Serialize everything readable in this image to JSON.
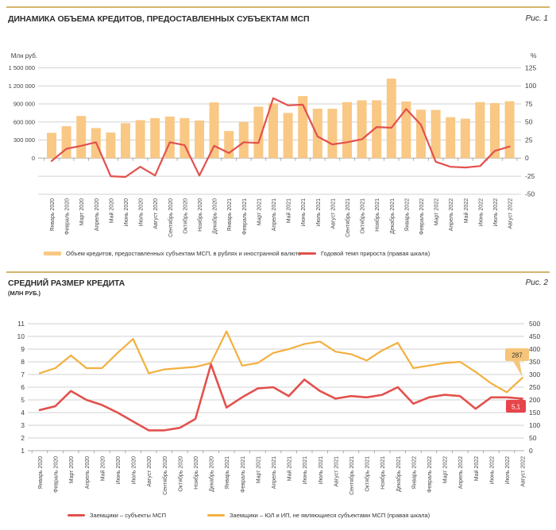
{
  "panels": [
    {
      "title": "ДИНАМИКА ОБЪЕМА КРЕДИТОВ, ПРЕДОСТАВЛЕННЫХ СУБЪЕКТАМ МСП",
      "fig_label": "Рис. 1"
    },
    {
      "title": "СРЕДНИЙ РАЗМЕР КРЕДИТА",
      "subtitle": "(МЛН РУБ.)",
      "fig_label": "Рис. 2"
    }
  ],
  "colors": {
    "bar": "#f9c884",
    "red_line": "#e2514d",
    "yellow_line": "#f2b03f",
    "grid": "#d2d2d2",
    "zero_axis": "#ababab",
    "rule": "#d5b46c",
    "callout_yellow_bg": "#f7c579",
    "callout_red_bg": "#e6454b"
  },
  "chart_data": [
    {
      "type": "bar",
      "title": "ДИНАМИКА ОБЪЕМА КРЕДИТОВ, ПРЕДОСТАВЛЕННЫХ СУБЪЕКТАМ МСП",
      "categories": [
        "Январь 2020",
        "Февраль 2020",
        "Март 2020",
        "Апрель 2020",
        "Май 2020",
        "Июнь 2020",
        "Июль 2020",
        "Август 2020",
        "Сентябрь 2020",
        "Октябрь 2020",
        "Ноябрь 2020",
        "Декабрь 2020",
        "Январь 2021",
        "Февраль 2021",
        "Март 2021",
        "Апрель 2021",
        "Май 2021",
        "Июнь 2021",
        "Июль 2021",
        "Август 2021",
        "Сентябрь 2021",
        "Октябрь 2021",
        "Ноябрь 2021",
        "Декабрь 2021",
        "Январь 2022",
        "Февраль 2022",
        "Март 2022",
        "Апрель 2022",
        "Май 2022",
        "Июнь 2022",
        "Июль 2022",
        "Август 2022"
      ],
      "series": [
        {
          "name": "Объем кредитов, предоставленных субъектам МСП, в рублях и иностранной валюте",
          "type": "bar",
          "axis": "left",
          "color": "#f9c884",
          "values": [
            420000,
            530000,
            700000,
            500000,
            425000,
            580000,
            630000,
            665000,
            690000,
            665000,
            625000,
            925000,
            450000,
            600000,
            855000,
            910000,
            750000,
            1030000,
            820000,
            820000,
            930000,
            960000,
            960000,
            1320000,
            940000,
            805000,
            800000,
            680000,
            655000,
            930000,
            915000,
            945000
          ]
        },
        {
          "name": "Годовой темп прироста (правая шкала)",
          "type": "line",
          "axis": "right",
          "color": "#e2514d",
          "values": [
            -4,
            13,
            17,
            22,
            -25,
            -26,
            -12,
            -24,
            22,
            18,
            -24,
            17,
            7,
            22,
            21,
            83,
            73,
            74,
            30,
            19,
            22,
            26,
            43,
            42,
            68,
            46,
            -5,
            -12,
            -13,
            -11,
            10,
            16
          ]
        }
      ],
      "left_axis": {
        "title": "Млн руб.",
        "min": -600000,
        "max": 1500000,
        "step": 300000,
        "tick_labels": [
          "0",
          "300 000",
          "600 000",
          "900 000",
          "1 200 000",
          "1 500 000"
        ]
      },
      "right_axis": {
        "title": "%",
        "min": -50,
        "max": 125,
        "step": 25
      },
      "grid": true,
      "legend_position": "bottom"
    },
    {
      "type": "line",
      "title": "СРЕДНИЙ РАЗМЕР КРЕДИТА (МЛН РУБ.)",
      "categories": [
        "Январь 2020",
        "Февраль 2020",
        "Март 2020",
        "Апрель 2020",
        "Май 2020",
        "Июнь 2020",
        "Июль 2020",
        "Август 2020",
        "Сентябрь 2020",
        "Октябрь 2020",
        "Ноябрь 2020",
        "Декабрь 2020",
        "Январь 2021",
        "Февраль 2021",
        "Март 2021",
        "Апрель 2021",
        "Май 2021",
        "Июнь 2021",
        "Июль 2021",
        "Август 2021",
        "Сентябрь 2021",
        "Октябрь 2021",
        "Ноябрь 2021",
        "Декабрь 2021",
        "Январь 2022",
        "Февраль 2022",
        "Март 2022",
        "Апрель 2022",
        "Май 2022",
        "Июнь 2022",
        "Июль 2022",
        "Август 2022"
      ],
      "series": [
        {
          "name": "Заемщики – субъекты МСП",
          "axis": "left",
          "color": "#e2514d",
          "end_label": "5,1",
          "values": [
            4.2,
            4.5,
            5.7,
            5.0,
            4.6,
            4.0,
            3.3,
            2.6,
            2.6,
            2.8,
            3.5,
            7.8,
            4.4,
            5.2,
            5.9,
            6.0,
            5.3,
            6.6,
            5.7,
            5.1,
            5.3,
            5.2,
            5.4,
            6.0,
            4.7,
            5.2,
            5.4,
            5.3,
            4.3,
            5.2,
            5.2,
            5.1
          ]
        },
        {
          "name": "Заемщики – ЮЛ и ИП, не являющиеся субъектами МСП (правая шкала)",
          "axis": "right",
          "color": "#f2b03f",
          "end_label": "287",
          "values": [
            305,
            325,
            375,
            325,
            325,
            385,
            440,
            305,
            320,
            325,
            330,
            345,
            470,
            335,
            345,
            385,
            400,
            420,
            430,
            390,
            380,
            355,
            395,
            425,
            325,
            335,
            345,
            350,
            310,
            265,
            230,
            287
          ]
        }
      ],
      "left_axis": {
        "min": 1,
        "max": 11,
        "step": 1
      },
      "right_axis": {
        "min": 0,
        "max": 500,
        "step": 50
      },
      "grid": true,
      "legend_position": "bottom"
    }
  ]
}
